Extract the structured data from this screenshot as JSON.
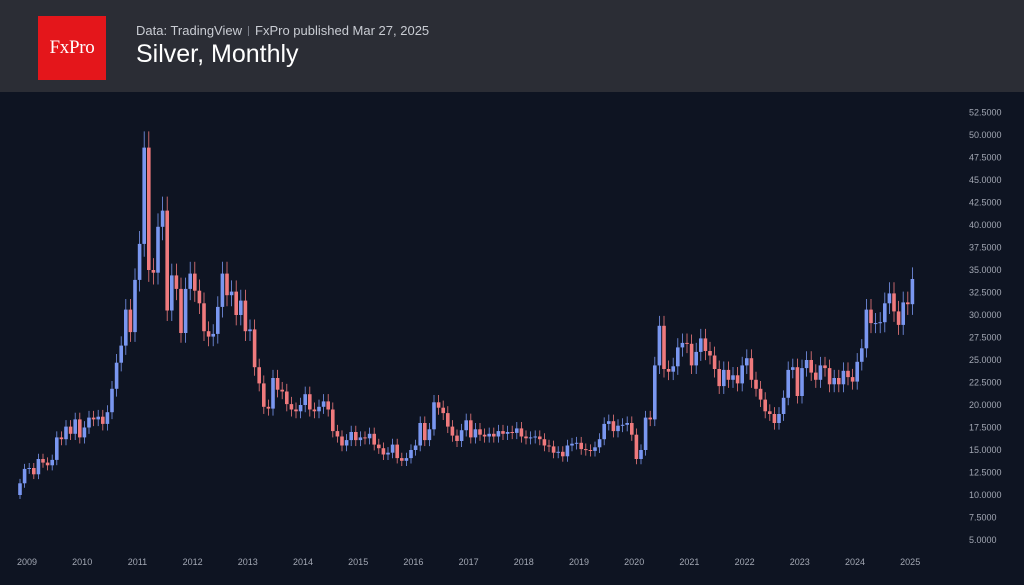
{
  "header": {
    "logo_text": "FxPro",
    "source_label": "Data: TradingView",
    "publisher_label": "FxPro published Mar 27, 2025",
    "title": "Silver, Monthly"
  },
  "colors": {
    "background": "#0e1422",
    "header_bg": "#2b2d35",
    "logo_bg": "#e4161b",
    "up": "#7a97f0",
    "down": "#ef7a7d"
  },
  "chart_data": {
    "type": "candlestick",
    "interval": "monthly",
    "ylim": [
      5,
      55
    ],
    "y_ticks": [
      "5.0000",
      "7.5000",
      "10.0000",
      "12.5000",
      "15.0000",
      "17.5000",
      "20.0000",
      "22.5000",
      "25.0000",
      "27.5000",
      "30.0000",
      "32.5000",
      "35.0000",
      "37.5000",
      "40.0000",
      "42.5000",
      "45.0000",
      "47.5000",
      "50.0000",
      "52.5000"
    ],
    "x_ticks": [
      "2009",
      "2010",
      "2011",
      "2012",
      "2013",
      "2014",
      "2015",
      "2016",
      "2017",
      "2018",
      "2019",
      "2020",
      "2021",
      "2022",
      "2023",
      "2024",
      "2025"
    ],
    "x_start": "2009-01",
    "closes": [
      11.3,
      12.9,
      13.0,
      12.3,
      14.0,
      13.6,
      13.3,
      13.9,
      16.4,
      16.2,
      17.6,
      16.8,
      18.4,
      16.4,
      17.5,
      18.6,
      18.4,
      18.7,
      17.9,
      19.2,
      21.8,
      24.7,
      26.6,
      30.6,
      28.1,
      33.9,
      37.9,
      48.6,
      35.0,
      34.7,
      39.8,
      41.6,
      30.5,
      34.4,
      32.9,
      28.0,
      32.9,
      34.6,
      32.7,
      31.3,
      28.2,
      27.6,
      27.9,
      30.9,
      34.6,
      32.2,
      32.6,
      30.0,
      31.6,
      28.2,
      28.4,
      24.2,
      22.4,
      19.8,
      19.6,
      23.0,
      21.7,
      21.5,
      20.1,
      19.5,
      19.3,
      20.0,
      21.2,
      19.5,
      19.3,
      19.8,
      20.4,
      19.5,
      17.1,
      16.5,
      15.5,
      16.1,
      17.0,
      16.1,
      16.4,
      16.3,
      16.8,
      15.6,
      15.2,
      14.5,
      14.7,
      15.6,
      14.1,
      13.8,
      14.1,
      15.0,
      15.5,
      18.0,
      16.1,
      17.3,
      20.3,
      19.7,
      19.1,
      17.6,
      16.6,
      16.0,
      17.2,
      18.3,
      16.4,
      17.3,
      16.7,
      16.5,
      16.8,
      16.5,
      17.1,
      16.8,
      17.0,
      16.9,
      17.4,
      16.5,
      16.3,
      16.4,
      16.5,
      16.2,
      15.5,
      15.4,
      14.7,
      14.8,
      14.3,
      15.5,
      15.7,
      15.8,
      15.1,
      15.0,
      14.9,
      15.3,
      16.2,
      17.9,
      18.2,
      17.1,
      17.7,
      17.8,
      18.0,
      16.7,
      14.0,
      15.0,
      18.6,
      18.4,
      24.4,
      28.8,
      24.0,
      23.7,
      24.3,
      26.4,
      26.9,
      26.8,
      24.4,
      25.9,
      27.4,
      26.0,
      25.5,
      24.0,
      22.1,
      23.9,
      22.8,
      23.3,
      22.4,
      24.4,
      25.2,
      22.8,
      21.8,
      20.6,
      19.3,
      19.0,
      18.0,
      19.0,
      20.8,
      23.9,
      24.2,
      21.0,
      24.1,
      25.0,
      23.6,
      22.8,
      24.4,
      24.1,
      22.3,
      23.0,
      22.3,
      23.8,
      23.1,
      22.6,
      24.8,
      26.3,
      30.6,
      29.1,
      29.1,
      29.2,
      31.3,
      32.4,
      30.4,
      28.9,
      31.4,
      31.2,
      34.0
    ]
  }
}
